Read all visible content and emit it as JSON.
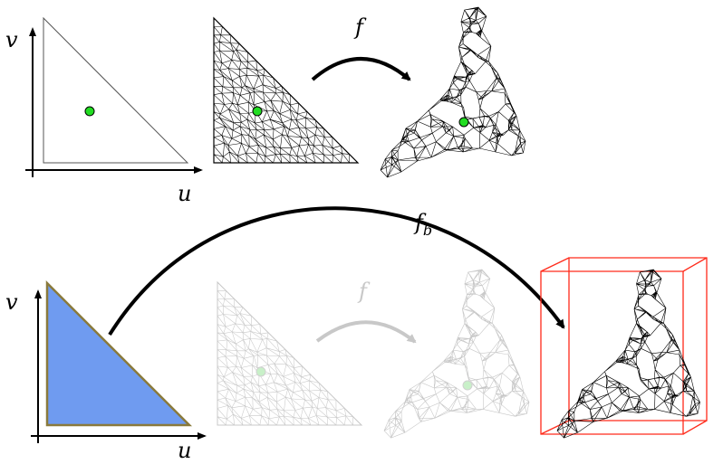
{
  "top_row": {
    "axis_u": "u",
    "axis_v": "v",
    "map_label": "f"
  },
  "bottom_row": {
    "axis_u": "u",
    "axis_v": "v",
    "map_label": "f",
    "map_b_label_base": "f",
    "map_b_label_sub": "b"
  },
  "colors": {
    "point": "#22dd22",
    "point_faded": "#c8f0c8",
    "triangle_fill": "#6f9bf0",
    "triangle_edge": "#8a7a3c",
    "bbox": "#ff2a1a",
    "mesh": "#000000",
    "mesh_faded": "#c8c8c8"
  }
}
